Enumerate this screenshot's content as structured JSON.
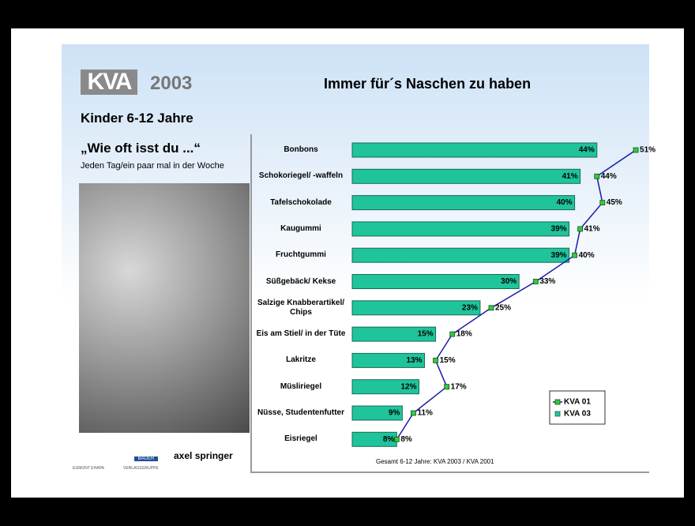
{
  "slide": {
    "logo": "KVA",
    "year": "2003",
    "subtitle": "Kinder 6-12 Jahre",
    "question": "„Wie oft isst du ...“",
    "question_note": "Jeden Tag/ein paar mal in der Woche",
    "publishers": [
      "EGMONT EHAPA",
      "BAUER",
      "VERLAGSGRUPPE",
      "axel springer"
    ]
  },
  "chart_data": {
    "type": "bar-line",
    "title": "Immer für´s Naschen zu haben",
    "note": "Gesamt 6-12 Jahre: KVA 2003 / KVA 2001",
    "categories": [
      "Bonbons",
      "Schokoriegel/ -waffeln",
      "Tafelschokolade",
      "Kaugummi",
      "Fruchtgummi",
      "Süßgebäck/ Kekse",
      "Salzige Knabberartikel/ Chips",
      "Eis am Stiel/ in der Tüte",
      "Lakritze",
      "Müsliriegel",
      "Nüsse, Studentenfutter",
      "Eisriegel"
    ],
    "xlim": [
      0,
      50
    ],
    "series": [
      {
        "name": "KVA 01",
        "kind": "line",
        "color": "#1a1aa8",
        "marker_color": "#2ecc40",
        "values": [
          51,
          44,
          45,
          41,
          40,
          33,
          25,
          18,
          15,
          17,
          11,
          8
        ],
        "value_labels": [
          "51%",
          "44%",
          "45%",
          "41%",
          "40%",
          "33%",
          "25%",
          "18%",
          "15%",
          "17%",
          "11%",
          "8%"
        ]
      },
      {
        "name": "KVA 03",
        "kind": "bar",
        "color": "#1fc49b",
        "values": [
          44,
          41,
          40,
          39,
          39,
          30,
          23,
          15,
          13,
          12,
          9,
          8
        ],
        "value_labels": [
          "44%",
          "41%",
          "40%",
          "39%",
          "39%",
          "30%",
          "23%",
          "15%",
          "13%",
          "12%",
          "9%",
          "8%"
        ]
      }
    ]
  }
}
